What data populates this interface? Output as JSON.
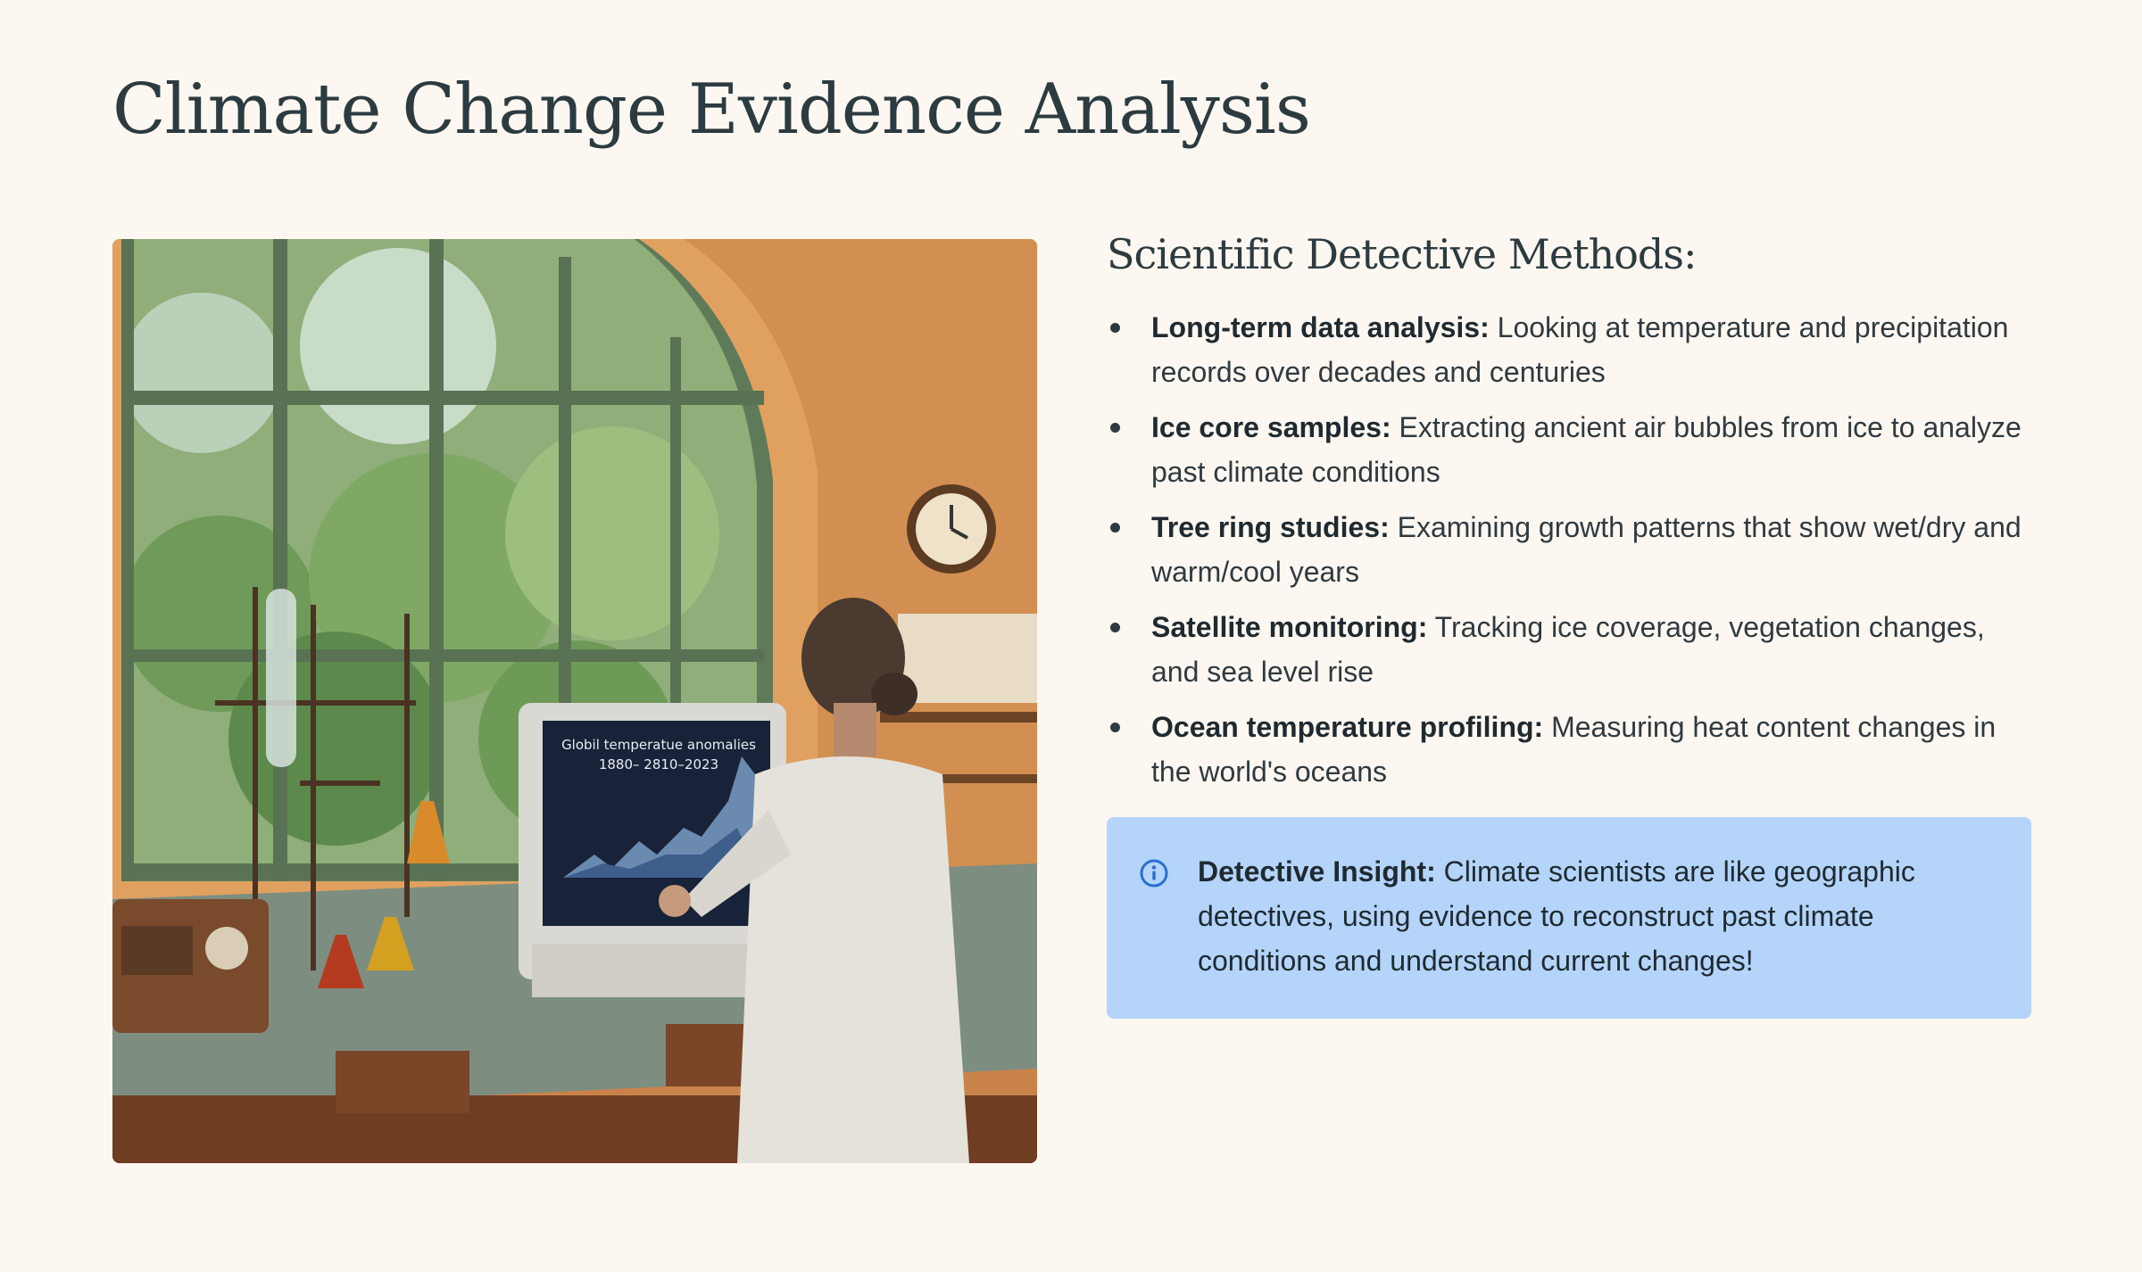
{
  "page": {
    "title": "Climate Change Evidence Analysis"
  },
  "image": {
    "alt": "Scientist in a lab coat viewing a monitor showing global temperature anomalies",
    "screen_title_line1": "Globil temperatue anomalies",
    "screen_title_line2": "1880– 2810–2023"
  },
  "methods": {
    "heading": "Scientific Detective Methods:",
    "items": [
      {
        "label": "Long-term data analysis:",
        "text": " Looking at temperature and precipitation records over decades and centuries"
      },
      {
        "label": "Ice core samples:",
        "text": " Extracting ancient air bubbles from ice to analyze past climate conditions"
      },
      {
        "label": "Tree ring studies:",
        "text": " Examining growth patterns that show wet/dry and warm/cool years"
      },
      {
        "label": "Satellite monitoring:",
        "text": " Tracking ice coverage, vegetation changes, and sea level rise"
      },
      {
        "label": "Ocean temperature profiling:",
        "text": " Measuring heat content changes in the world's oceans"
      }
    ]
  },
  "insight": {
    "icon": "info-icon",
    "label": "Detective Insight:",
    "text": " Climate scientists are like geographic detectives, using evidence to reconstruct past climate conditions and understand current changes!"
  },
  "colors": {
    "background": "#fdf7f1",
    "heading": "#2c3b40",
    "insight_bg": "#b4d4fa",
    "info_icon": "#2a6fd0"
  }
}
